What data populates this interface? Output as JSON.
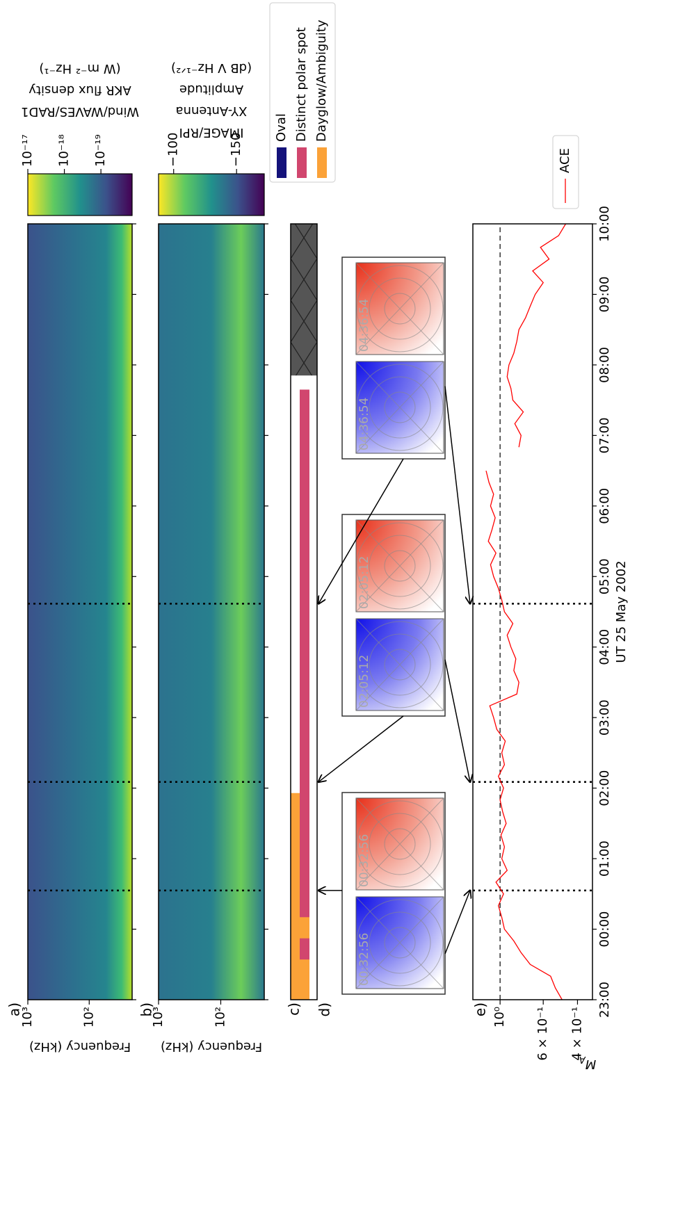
{
  "chart_data": [
    {
      "type": "spectrogram",
      "panel_label": "a)",
      "ylabel": "Frequency (kHz)",
      "log_y": true,
      "ylim": [
        20,
        1000
      ],
      "yticks": [
        {
          "value": 1000,
          "label": "10³"
        },
        {
          "value": 100,
          "label": "10²"
        }
      ],
      "colorbar": {
        "label": [
          "Wind/WAVES/RAD1",
          "AKR flux density",
          "(W m⁻² Hz⁻¹)"
        ],
        "log": true,
        "clim": [
          1.4e-20,
          1e-17
        ],
        "ticks": [
          {
            "value": 1e-17,
            "label": "10⁻¹⁷"
          },
          {
            "value": 1e-18,
            "label": "10⁻¹⁸"
          },
          {
            "value": 1e-19,
            "label": "10⁻¹⁹"
          }
        ]
      }
    },
    {
      "type": "spectrogram",
      "panel_label": "b)",
      "ylabel": "Frequency (kHz)",
      "log_y": true,
      "ylim": [
        20,
        1000
      ],
      "yticks": [
        {
          "value": 1000,
          "label": "10³"
        },
        {
          "value": 100,
          "label": "10²"
        }
      ],
      "colorbar": {
        "label": [
          "IMAGE/RPI",
          "XY-Antenna",
          "Amplitude",
          "(dB V Hz⁻¹ᐟ²)"
        ],
        "log": false,
        "clim": [
          -172,
          -88
        ],
        "ticks": [
          {
            "value": -100,
            "label": "−100"
          },
          {
            "value": -150,
            "label": "−150"
          }
        ]
      }
    },
    {
      "type": "interval",
      "panel_label": "c)",
      "legend": "upper right",
      "series": [
        {
          "name": "Oval",
          "color": "#14127a",
          "intervals": []
        },
        {
          "name": "Distinct polar spot",
          "color": "#d1466e",
          "intervals": [
            [
              23.57,
              23.87
            ],
            [
              24.17,
              31.65
            ]
          ]
        },
        {
          "name": "Dayglow/Ambiguity",
          "color": "#fba238",
          "intervals": [
            [
              23,
              25.93
            ]
          ]
        }
      ],
      "data_gap": [
        31.85,
        34
      ]
    },
    {
      "type": "image",
      "panel_label": "d)",
      "times": [
        24.549,
        26.087,
        28.615
      ],
      "labels": [
        "00:32:56",
        "02:05:12",
        "04:36:54"
      ]
    },
    {
      "type": "line",
      "panel_label": "e)",
      "ylabel": "M",
      "ylabel_subscript": "A",
      "log_y": true,
      "xlabel": "UT 25 May 2002",
      "xlim": [
        23,
        34
      ],
      "xticks": [
        {
          "value": 23,
          "label": "23:00"
        },
        {
          "value": 24,
          "label": "00:00"
        },
        {
          "value": 25,
          "label": "01:00"
        },
        {
          "value": 26,
          "label": "02:00"
        },
        {
          "value": 27,
          "label": "03:00"
        },
        {
          "value": 28,
          "label": "04:00"
        },
        {
          "value": 29,
          "label": "05:00"
        },
        {
          "value": 30,
          "label": "06:00"
        },
        {
          "value": 31,
          "label": "07:00"
        },
        {
          "value": 32,
          "label": "08:00"
        },
        {
          "value": 33,
          "label": "09:00"
        },
        {
          "value": 34,
          "label": "10:00"
        }
      ],
      "ylim": [
        0.335,
        1.38
      ],
      "yticks": [
        {
          "value": 1,
          "label": "10⁰"
        },
        {
          "value": 0.6,
          "label": "6 × 10⁻¹"
        },
        {
          "value": 0.4,
          "label": "4 × 10⁻¹"
        }
      ],
      "legend": "upper right",
      "x": [
        23,
        23.167,
        23.333,
        23.5,
        23.667,
        23.833,
        24,
        24.167,
        24.333,
        24.5,
        24.667,
        24.833,
        25,
        25.167,
        25.333,
        25.5,
        25.667,
        25.833,
        26,
        26.167,
        26.333,
        26.5,
        26.667,
        26.833,
        27,
        27.167,
        27.333,
        27.5,
        27.667,
        27.833,
        28,
        28.167,
        28.333,
        28.5,
        28.667,
        28.833,
        29,
        29.167,
        29.333,
        29.5,
        29.667,
        29.833,
        30,
        30.167,
        30.333,
        30.5,
        30.667,
        30.833,
        31,
        31.167,
        31.333,
        31.5,
        31.667,
        31.833,
        32,
        32.167,
        32.333,
        32.5,
        32.667,
        32.833,
        33,
        33.167,
        33.333,
        33.5,
        33.667,
        33.833,
        34
      ],
      "series": [
        {
          "name": "ACE",
          "color": "#ff0000",
          "values": [
            0.48,
            0.52,
            0.55,
            0.7,
            0.78,
            0.85,
            0.95,
            0.98,
            1.02,
            0.96,
            1.05,
            0.92,
            0.98,
            0.95,
            0.99,
            0.93,
            0.97,
            1.0,
            0.96,
            1.02,
            0.95,
            0.98,
            0.94,
            1.04,
            1.08,
            1.13,
            0.82,
            0.8,
            0.85,
            0.83,
            0.88,
            0.92,
            0.86,
            0.95,
            0.98,
            1.02,
            1.08,
            1.12,
            1.05,
            1.15,
            1.1,
            1.06,
            1.12,
            1.08,
            1.14,
            1.18,
            null,
            0.8,
            0.78,
            0.84,
            0.76,
            0.86,
            0.88,
            0.92,
            0.9,
            0.85,
            0.82,
            0.8,
            0.74,
            0.7,
            0.66,
            0.6,
            0.68,
            0.56,
            0.62,
            0.5,
            0.46
          ]
        }
      ]
    }
  ]
}
